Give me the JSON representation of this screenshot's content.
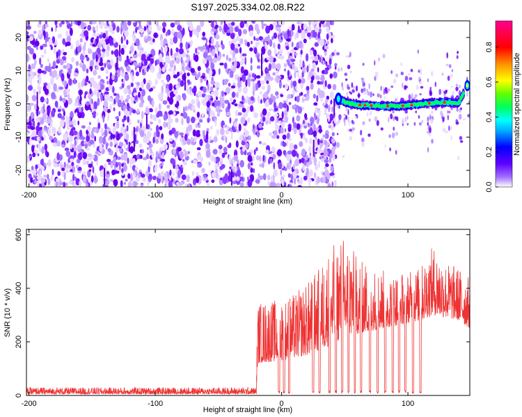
{
  "title": "S197.2025.334.02.08.R22",
  "chart_data": [
    {
      "type": "heatmap",
      "xlabel": "Height of straight line (km)",
      "ylabel": "Frequency (Hz)",
      "xlim": [
        -202,
        149
      ],
      "ylim": [
        -25,
        25
      ],
      "x_ticks": [
        -200,
        -100,
        0,
        100
      ],
      "y_ticks": [
        -20,
        -10,
        0,
        10,
        20
      ],
      "noise_region_x": [
        -202,
        43
      ],
      "signal_region_x": [
        43,
        149
      ],
      "signal_track": [
        {
          "x": 45,
          "y": 1.5
        },
        {
          "x": 50,
          "y": 0.5
        },
        {
          "x": 60,
          "y": -0.3
        },
        {
          "x": 70,
          "y": -0.5
        },
        {
          "x": 80,
          "y": -0.6
        },
        {
          "x": 90,
          "y": -0.7
        },
        {
          "x": 100,
          "y": -0.5
        },
        {
          "x": 110,
          "y": 0.0
        },
        {
          "x": 120,
          "y": 0.3
        },
        {
          "x": 130,
          "y": 0.5
        },
        {
          "x": 140,
          "y": 0.2
        },
        {
          "x": 147,
          "y": 5.5
        }
      ],
      "colorbar": {
        "label": "Normalized spectral amplitude",
        "range": [
          0,
          0.95
        ],
        "ticks": [
          "0.0",
          "0.2",
          "0.4",
          "0.6",
          "0.8"
        ],
        "colors": [
          "#ffffff",
          "#7f00ff",
          "#0000ff",
          "#00ffff",
          "#00ff00",
          "#ffff00",
          "#ff8000",
          "#ff0000",
          "#ff00aa"
        ]
      }
    },
    {
      "type": "line",
      "xlabel": "Height of straight line (km)",
      "ylabel": "SNR (10 * v/v)",
      "xlim": [
        -202,
        149
      ],
      "ylim": [
        0,
        620
      ],
      "x_ticks": [
        -200,
        -100,
        0,
        100
      ],
      "y_ticks": [
        0,
        200,
        400,
        600
      ],
      "series": [
        {
          "color": "#ee3333",
          "envelope_x": [
            -202,
            -150,
            -100,
            -60,
            -20,
            -19,
            0,
            10,
            20,
            30,
            40,
            50,
            60,
            70,
            80,
            90,
            100,
            110,
            120,
            130,
            140,
            149
          ],
          "envelope_low": [
            5,
            5,
            5,
            5,
            5,
            120,
            130,
            140,
            150,
            170,
            190,
            220,
            230,
            240,
            250,
            260,
            270,
            280,
            300,
            290,
            280,
            250
          ],
          "envelope_high": [
            30,
            30,
            30,
            30,
            30,
            350,
            360,
            380,
            420,
            480,
            560,
            600,
            520,
            480,
            470,
            460,
            460,
            480,
            560,
            500,
            480,
            440
          ],
          "dropouts_x": [
            -2,
            2,
            6,
            25,
            30,
            38,
            43,
            48,
            53,
            58,
            63,
            70,
            76,
            82,
            88,
            93,
            98,
            104,
            110
          ]
        }
      ]
    }
  ]
}
